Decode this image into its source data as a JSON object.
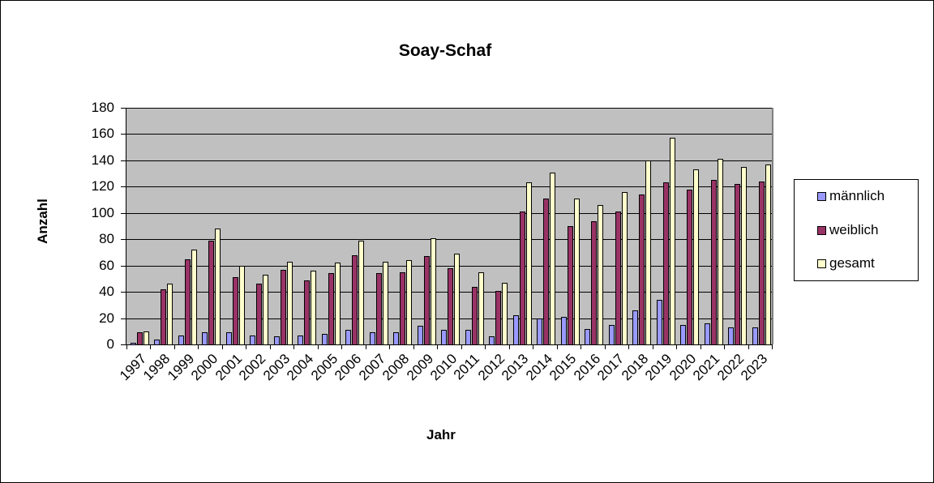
{
  "chart_data": {
    "type": "bar",
    "title": "Soay-Schaf",
    "xlabel": "Jahr",
    "ylabel": "Anzahl",
    "ylim": [
      0,
      180
    ],
    "yticks": [
      0,
      20,
      40,
      60,
      80,
      100,
      120,
      140,
      160,
      180
    ],
    "grid": true,
    "legend_position": "right",
    "categories": [
      "1997",
      "1998",
      "1999",
      "2000",
      "2001",
      "2002",
      "2003",
      "2004",
      "2005",
      "2006",
      "2007",
      "2008",
      "2009",
      "2010",
      "2011",
      "2012",
      "2013",
      "2014",
      "2015",
      "2016",
      "2017",
      "2018",
      "2019",
      "2020",
      "2021",
      "2022",
      "2023"
    ],
    "series": [
      {
        "name": "männlich",
        "color": "#9999ff",
        "values": [
          1,
          4,
          7,
          9,
          9,
          7,
          6,
          7,
          8,
          11,
          9,
          9,
          14,
          11,
          11,
          6,
          22,
          20,
          21,
          12,
          15,
          26,
          34,
          15,
          16,
          13,
          13
        ]
      },
      {
        "name": "weiblich",
        "color": "#993366",
        "values": [
          9,
          42,
          65,
          79,
          51,
          46,
          57,
          49,
          54,
          68,
          54,
          55,
          67,
          58,
          44,
          41,
          101,
          111,
          90,
          94,
          101,
          114,
          123,
          118,
          125,
          122,
          124
        ]
      },
      {
        "name": "gesamt",
        "color": "#ffffcc",
        "values": [
          10,
          46,
          72,
          88,
          60,
          53,
          63,
          56,
          62,
          79,
          63,
          64,
          81,
          69,
          55,
          47,
          123,
          131,
          111,
          106,
          116,
          140,
          157,
          133,
          141,
          135,
          137
        ]
      }
    ]
  },
  "plot_bg": "#c0c0c0"
}
